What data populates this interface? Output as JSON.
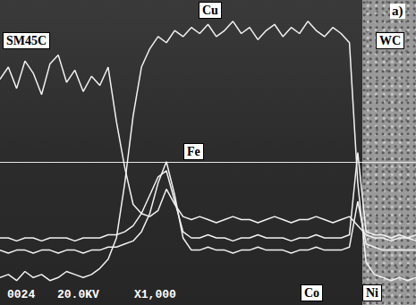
{
  "chart_data": {
    "type": "line",
    "x": [
      0,
      2,
      4,
      6,
      8,
      10,
      12,
      14,
      16,
      18,
      20,
      22,
      24,
      26,
      28,
      30,
      32,
      34,
      36,
      38,
      40,
      42,
      44,
      46,
      48,
      50,
      52,
      54,
      56,
      58,
      60,
      62,
      64,
      66,
      68,
      70,
      72,
      74,
      76,
      78,
      80,
      82,
      84,
      86,
      88,
      90,
      92,
      94,
      96,
      98,
      100
    ],
    "xlim": [
      0,
      100
    ],
    "ylim": [
      0,
      100
    ],
    "tick_labels": false,
    "grid": false,
    "series": [
      {
        "name": "Cu",
        "color": "#f2f2f2",
        "values": [
          9,
          10,
          8,
          11,
          9,
          10,
          8,
          9,
          11,
          10,
          9,
          10,
          12,
          15,
          22,
          40,
          62,
          78,
          84,
          88,
          86,
          90,
          88,
          91,
          89,
          92,
          88,
          90,
          93,
          89,
          91,
          87,
          90,
          92,
          88,
          91,
          89,
          93,
          90,
          88,
          91,
          89,
          86,
          40,
          14,
          10,
          9,
          8,
          9,
          8,
          9
        ]
      },
      {
        "name": "Fe",
        "color": "#f2f2f2",
        "values": [
          74,
          78,
          71,
          80,
          76,
          69,
          79,
          82,
          73,
          77,
          70,
          75,
          72,
          78,
          60,
          45,
          33,
          30,
          29,
          31,
          38,
          33,
          29,
          28,
          29,
          28,
          27,
          28,
          29,
          28,
          28,
          27,
          28,
          29,
          28,
          27,
          28,
          28,
          29,
          28,
          27,
          28,
          29,
          26,
          23,
          22,
          22,
          21,
          22,
          22,
          21
        ]
      },
      {
        "name": "Co",
        "color": "#f2f2f2",
        "values": [
          22,
          22,
          21,
          22,
          22,
          21,
          22,
          22,
          22,
          21,
          22,
          22,
          22,
          23,
          23,
          24,
          26,
          30,
          36,
          42,
          44,
          34,
          24,
          22,
          22,
          23,
          22,
          22,
          21,
          22,
          22,
          23,
          22,
          22,
          22,
          21,
          22,
          22,
          23,
          22,
          22,
          22,
          23,
          50,
          24,
          23,
          23,
          22,
          23,
          22,
          23
        ]
      },
      {
        "name": "Ni",
        "color": "#f2f2f2",
        "values": [
          18,
          17,
          18,
          18,
          17,
          18,
          18,
          17,
          18,
          18,
          17,
          18,
          18,
          19,
          19,
          20,
          21,
          24,
          30,
          40,
          47,
          36,
          22,
          18,
          18,
          19,
          18,
          18,
          17,
          18,
          18,
          19,
          18,
          18,
          18,
          17,
          18,
          18,
          19,
          18,
          18,
          18,
          19,
          34,
          20,
          19,
          18,
          18,
          18,
          18,
          18
        ]
      }
    ],
    "annotations": [
      "SM45C",
      "WC",
      "a)",
      "0024",
      "20.0KV",
      "X1,000"
    ]
  }
}
